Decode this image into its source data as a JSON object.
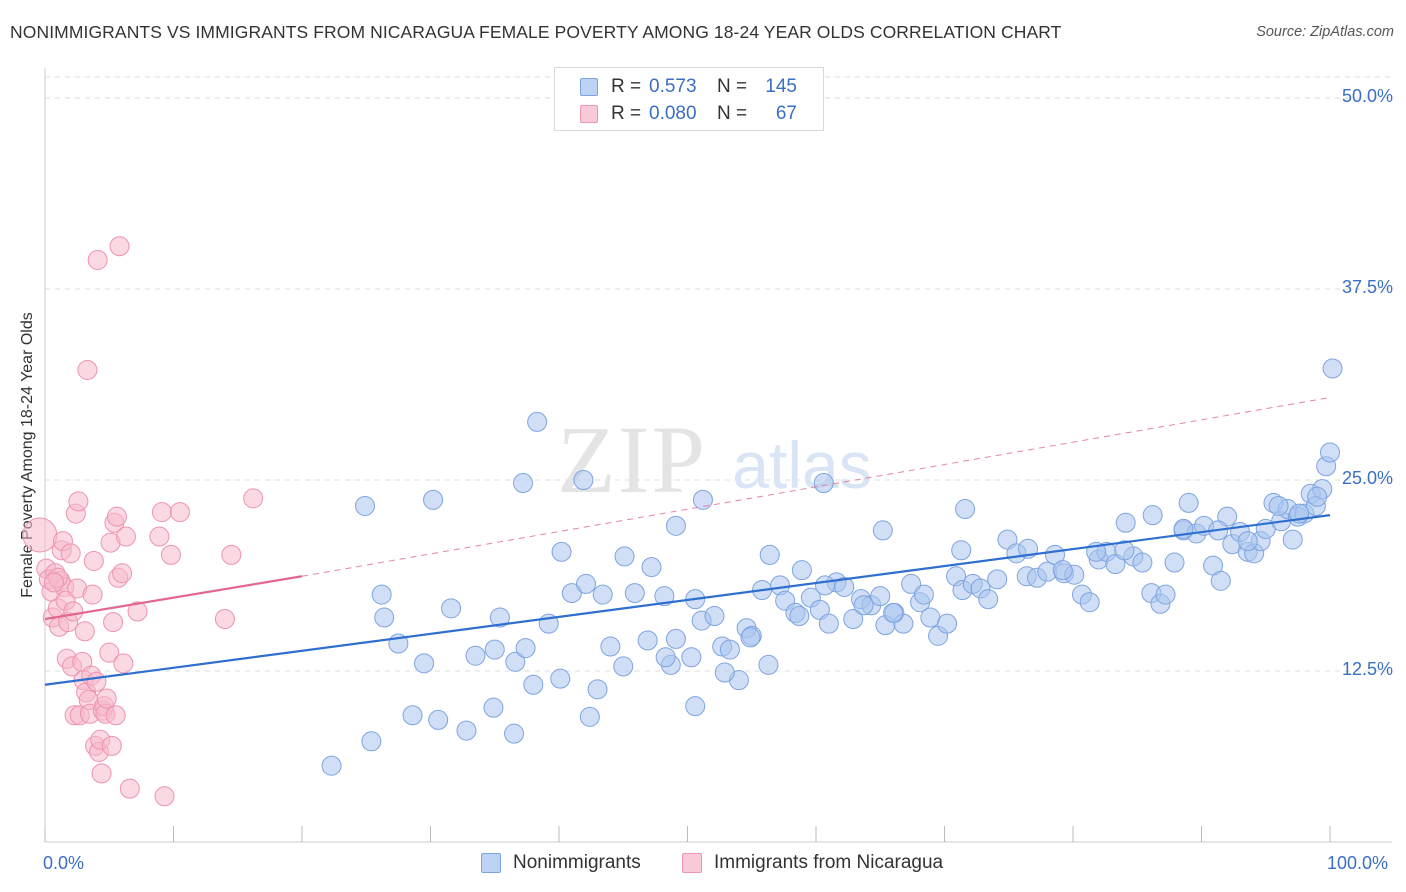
{
  "header": {
    "title": "NONIMMIGRANTS VS IMMIGRANTS FROM NICARAGUA FEMALE POVERTY AMONG 18-24 YEAR OLDS CORRELATION CHART",
    "source": "Source: ZipAtlas.com"
  },
  "watermark": {
    "zip": "ZIP",
    "atlas": "atlas"
  },
  "legend_top": {
    "rows": [
      {
        "r_label": "R =",
        "r_value": "0.573",
        "n_label": "N =",
        "n_value": "145"
      },
      {
        "r_label": "R =",
        "r_value": "0.080",
        "n_label": "N =",
        "n_value": "67"
      }
    ]
  },
  "colors": {
    "blue_fill": "#a9c4ee",
    "blue_stroke": "#7ea4e0",
    "blue_line": "#2f6fcf",
    "pink_fill": "#f6b9cc",
    "pink_stroke": "#ee93b0",
    "pink_line": "#e0678f",
    "grid": "#dddddd",
    "tick_text": "#3a6fc4"
  },
  "chart_data": {
    "type": "scatter",
    "title": "NONIMMIGRANTS VS IMMIGRANTS FROM NICARAGUA FEMALE POVERTY AMONG 18-24 YEAR OLDS CORRELATION CHART",
    "xlabel": "",
    "ylabel": "Female Poverty Among 18-24 Year Olds",
    "xlim": [
      0,
      100
    ],
    "ylim": [
      0,
      50
    ],
    "x_tick_labels": [
      "0.0%",
      "100.0%"
    ],
    "y_ticks": [
      12.5,
      25.0,
      37.5,
      50.0
    ],
    "y_tick_labels": [
      "12.5%",
      "25.0%",
      "37.5%",
      "50.0%"
    ],
    "grid": true,
    "legend_position": "top-center",
    "series": [
      {
        "name": "Nonimmigrants",
        "color": "#a9c4ee",
        "trend": {
          "x": [
            0,
            100
          ],
          "y": [
            11.6,
            22.7
          ],
          "style": "solid"
        },
        "points": [
          [
            22.3,
            6.3
          ],
          [
            25.4,
            7.9
          ],
          [
            28.6,
            9.6
          ],
          [
            30.6,
            9.3
          ],
          [
            32.8,
            8.6
          ],
          [
            34.9,
            10.1
          ],
          [
            36.5,
            8.4
          ],
          [
            38.0,
            11.6
          ],
          [
            40.1,
            12.0
          ],
          [
            43.0,
            11.3
          ],
          [
            26.2,
            17.5
          ],
          [
            26.4,
            16.0
          ],
          [
            27.5,
            14.3
          ],
          [
            29.5,
            13.0
          ],
          [
            31.6,
            16.6
          ],
          [
            33.5,
            13.5
          ],
          [
            35.0,
            13.9
          ],
          [
            35.4,
            16.0
          ],
          [
            36.6,
            13.1
          ],
          [
            37.4,
            14.0
          ],
          [
            39.2,
            15.6
          ],
          [
            40.2,
            20.3
          ],
          [
            41.0,
            17.6
          ],
          [
            42.1,
            18.2
          ],
          [
            43.4,
            17.5
          ],
          [
            44.0,
            14.1
          ],
          [
            45.1,
            20.0
          ],
          [
            45.9,
            17.6
          ],
          [
            46.9,
            14.5
          ],
          [
            47.2,
            19.3
          ],
          [
            48.2,
            17.4
          ],
          [
            48.7,
            12.9
          ],
          [
            49.1,
            14.6
          ],
          [
            50.3,
            13.4
          ],
          [
            50.6,
            17.2
          ],
          [
            51.1,
            15.8
          ],
          [
            52.1,
            16.1
          ],
          [
            52.7,
            14.1
          ],
          [
            53.3,
            13.9
          ],
          [
            54.0,
            11.9
          ],
          [
            54.6,
            15.3
          ],
          [
            55.0,
            14.8
          ],
          [
            55.8,
            17.8
          ],
          [
            56.4,
            20.1
          ],
          [
            57.2,
            18.1
          ],
          [
            57.6,
            17.1
          ],
          [
            58.4,
            16.3
          ],
          [
            58.9,
            19.1
          ],
          [
            59.6,
            17.3
          ],
          [
            60.3,
            16.5
          ],
          [
            61.0,
            15.6
          ],
          [
            61.6,
            18.3
          ],
          [
            62.2,
            18.0
          ],
          [
            62.9,
            15.9
          ],
          [
            63.5,
            17.2
          ],
          [
            64.3,
            16.8
          ],
          [
            65.0,
            17.4
          ],
          [
            65.4,
            15.5
          ],
          [
            66.1,
            16.3
          ],
          [
            66.8,
            15.6
          ],
          [
            67.4,
            18.2
          ],
          [
            68.1,
            17.0
          ],
          [
            68.9,
            16.0
          ],
          [
            69.5,
            14.8
          ],
          [
            70.2,
            15.6
          ],
          [
            70.9,
            18.7
          ],
          [
            71.4,
            17.8
          ],
          [
            72.2,
            18.2
          ],
          [
            72.8,
            17.9
          ],
          [
            73.4,
            17.2
          ],
          [
            74.1,
            18.5
          ],
          [
            74.9,
            21.1
          ],
          [
            75.6,
            20.2
          ],
          [
            76.4,
            18.7
          ],
          [
            77.2,
            18.6
          ],
          [
            78.0,
            19.0
          ],
          [
            78.6,
            20.1
          ],
          [
            79.3,
            18.9
          ],
          [
            80.1,
            18.8
          ],
          [
            80.7,
            17.5
          ],
          [
            81.3,
            17.0
          ],
          [
            82.0,
            19.8
          ],
          [
            82.6,
            20.3
          ],
          [
            83.3,
            19.5
          ],
          [
            84.1,
            22.2
          ],
          [
            84.7,
            20.0
          ],
          [
            85.4,
            19.6
          ],
          [
            86.1,
            17.6
          ],
          [
            86.8,
            16.9
          ],
          [
            87.2,
            17.5
          ],
          [
            87.9,
            19.6
          ],
          [
            88.6,
            21.7
          ],
          [
            89.0,
            23.5
          ],
          [
            89.6,
            21.5
          ],
          [
            90.2,
            22.0
          ],
          [
            90.9,
            19.4
          ],
          [
            91.5,
            18.4
          ],
          [
            92.0,
            22.6
          ],
          [
            92.4,
            20.8
          ],
          [
            93.0,
            21.6
          ],
          [
            93.6,
            20.3
          ],
          [
            94.1,
            20.2
          ],
          [
            94.6,
            21.0
          ],
          [
            95.0,
            21.8
          ],
          [
            95.6,
            23.5
          ],
          [
            96.2,
            22.3
          ],
          [
            96.7,
            23.1
          ],
          [
            97.1,
            21.1
          ],
          [
            97.5,
            22.6
          ],
          [
            98.0,
            22.8
          ],
          [
            98.5,
            24.1
          ],
          [
            98.9,
            23.3
          ],
          [
            99.4,
            24.4
          ],
          [
            99.7,
            25.9
          ],
          [
            100.0,
            26.8
          ],
          [
            100.2,
            32.3
          ],
          [
            99.0,
            23.9
          ],
          [
            97.6,
            22.8
          ],
          [
            96.0,
            23.3
          ],
          [
            93.6,
            21.0
          ],
          [
            91.3,
            21.7
          ],
          [
            88.6,
            21.8
          ],
          [
            86.2,
            22.7
          ],
          [
            84.0,
            20.4
          ],
          [
            81.8,
            20.3
          ],
          [
            79.2,
            19.1
          ],
          [
            76.5,
            20.5
          ],
          [
            71.3,
            20.4
          ],
          [
            68.4,
            17.5
          ],
          [
            66.0,
            16.3
          ],
          [
            63.7,
            16.8
          ],
          [
            60.7,
            18.1
          ],
          [
            58.7,
            16.1
          ],
          [
            56.3,
            12.9
          ],
          [
            54.9,
            14.7
          ],
          [
            52.9,
            12.4
          ],
          [
            50.6,
            10.2
          ],
          [
            48.3,
            13.4
          ],
          [
            45.0,
            12.8
          ],
          [
            42.4,
            9.5
          ],
          [
            37.2,
            24.8
          ],
          [
            38.3,
            28.8
          ],
          [
            24.9,
            23.3
          ],
          [
            30.2,
            23.7
          ],
          [
            41.9,
            25.0
          ],
          [
            49.1,
            22.0
          ],
          [
            51.2,
            23.7
          ],
          [
            60.6,
            24.8
          ],
          [
            71.6,
            23.1
          ],
          [
            65.2,
            21.7
          ]
        ]
      },
      {
        "name": "Immigrants from Nicaragua",
        "color": "#f6b9cc",
        "trend": {
          "x": [
            0,
            20
          ],
          "y": [
            15.9,
            18.7
          ],
          "style": "solid",
          "extended": {
            "x": [
              20,
              100
            ],
            "y": [
              18.7,
              30.4
            ],
            "style": "dashed"
          }
        },
        "points": [
          [
            -0.4,
            21.4
          ],
          [
            0.1,
            19.2
          ],
          [
            0.3,
            18.5
          ],
          [
            0.5,
            17.7
          ],
          [
            0.6,
            16.0
          ],
          [
            0.8,
            18.9
          ],
          [
            1.0,
            16.6
          ],
          [
            1.1,
            15.4
          ],
          [
            1.2,
            18.4
          ],
          [
            1.3,
            20.4
          ],
          [
            1.4,
            21.0
          ],
          [
            1.5,
            18.0
          ],
          [
            1.6,
            17.1
          ],
          [
            1.7,
            13.3
          ],
          [
            1.8,
            15.7
          ],
          [
            2.0,
            20.2
          ],
          [
            2.1,
            12.8
          ],
          [
            2.3,
            9.6
          ],
          [
            2.4,
            22.8
          ],
          [
            2.5,
            17.9
          ],
          [
            2.6,
            23.6
          ],
          [
            2.7,
            9.6
          ],
          [
            2.9,
            13.1
          ],
          [
            3.0,
            11.9
          ],
          [
            3.1,
            15.1
          ],
          [
            3.2,
            11.1
          ],
          [
            3.3,
            32.2
          ],
          [
            3.4,
            10.6
          ],
          [
            3.5,
            9.7
          ],
          [
            3.6,
            12.2
          ],
          [
            3.7,
            17.5
          ],
          [
            3.8,
            19.7
          ],
          [
            3.9,
            7.6
          ],
          [
            4.0,
            11.8
          ],
          [
            4.1,
            39.4
          ],
          [
            4.2,
            7.2
          ],
          [
            4.3,
            8.0
          ],
          [
            4.4,
            5.8
          ],
          [
            4.5,
            9.9
          ],
          [
            4.6,
            10.2
          ],
          [
            4.7,
            9.7
          ],
          [
            4.8,
            10.7
          ],
          [
            5.0,
            13.7
          ],
          [
            5.1,
            20.9
          ],
          [
            5.2,
            7.6
          ],
          [
            5.3,
            15.7
          ],
          [
            5.4,
            22.2
          ],
          [
            5.5,
            9.6
          ],
          [
            5.6,
            22.6
          ],
          [
            5.7,
            18.6
          ],
          [
            5.8,
            40.3
          ],
          [
            6.0,
            18.9
          ],
          [
            6.1,
            13.0
          ],
          [
            6.3,
            21.3
          ],
          [
            6.6,
            4.8
          ],
          [
            7.2,
            16.4
          ],
          [
            8.9,
            21.3
          ],
          [
            9.1,
            22.9
          ],
          [
            9.3,
            4.3
          ],
          [
            9.8,
            20.1
          ],
          [
            10.5,
            22.9
          ],
          [
            14.0,
            15.9
          ],
          [
            14.5,
            20.1
          ],
          [
            16.2,
            23.8
          ],
          [
            1.0,
            18.6
          ],
          [
            0.7,
            18.3
          ],
          [
            2.2,
            16.4
          ]
        ]
      }
    ]
  },
  "legend_bottom": {
    "items": [
      {
        "label": "Nonimmigrants"
      },
      {
        "label": "Immigrants from Nicaragua"
      }
    ]
  }
}
